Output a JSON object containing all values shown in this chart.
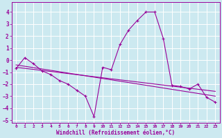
{
  "xlabel": "Windchill (Refroidissement éolien,°C)",
  "bg_color": "#cce9f0",
  "line_color": "#990099",
  "grid_color": "#ffffff",
  "xlim": [
    -0.5,
    23.5
  ],
  "ylim": [
    -5.2,
    4.8
  ],
  "xticks": [
    0,
    1,
    2,
    3,
    4,
    5,
    6,
    7,
    8,
    9,
    10,
    11,
    12,
    13,
    14,
    15,
    16,
    17,
    18,
    19,
    20,
    21,
    22,
    23
  ],
  "yticks": [
    -5,
    -4,
    -3,
    -2,
    -1,
    0,
    1,
    2,
    3,
    4
  ],
  "main_x": [
    0,
    1,
    2,
    3,
    4,
    5,
    6,
    7,
    8,
    9,
    10,
    11,
    12,
    13,
    14,
    15,
    16,
    17,
    18,
    19,
    20,
    21,
    22,
    23
  ],
  "main_y": [
    -0.7,
    0.2,
    -0.3,
    -0.9,
    -1.2,
    -1.7,
    -2.0,
    -2.5,
    -3.0,
    -4.7,
    -0.6,
    -0.8,
    1.3,
    2.5,
    3.3,
    4.0,
    4.0,
    1.8,
    -2.1,
    -2.2,
    -2.4,
    -2.0,
    -3.1,
    -3.5
  ],
  "trend1_x": [
    0,
    23
  ],
  "trend1_y": [
    -0.6,
    -2.6
  ],
  "trend2_x": [
    0,
    23
  ],
  "trend2_y": [
    -0.4,
    -3.0
  ]
}
